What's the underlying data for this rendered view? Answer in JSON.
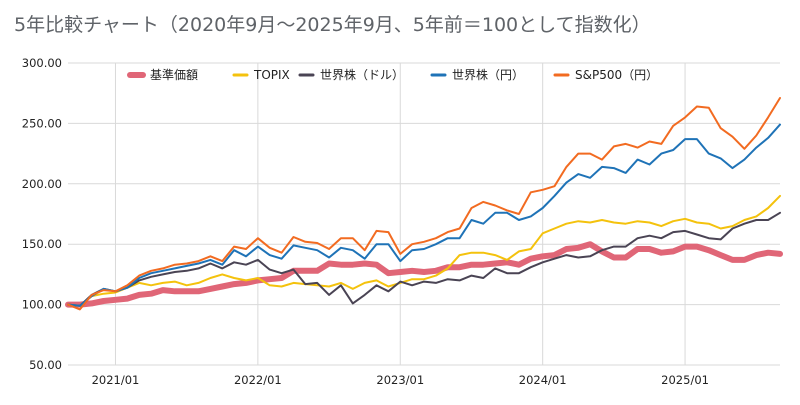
{
  "title": "5年比較チャート（2020年9月〜2025年9月、5年前＝100として指数化）",
  "chart_data": {
    "type": "line",
    "title": "5年比較チャート（2020年9月〜2025年9月、5年前＝100として指数化）",
    "xlabel": "",
    "ylabel": "",
    "ylim": [
      50,
      300
    ],
    "yticks": [
      "300.00",
      "250.00",
      "200.00",
      "150.00",
      "100.00",
      "50.00"
    ],
    "xticks": [
      {
        "label": "2021/01",
        "index": 4
      },
      {
        "label": "2022/01",
        "index": 16
      },
      {
        "label": "2023/01",
        "index": 28
      },
      {
        "label": "2024/01",
        "index": 40
      },
      {
        "label": "2025/01",
        "index": 52
      }
    ],
    "grid": true,
    "legend_position": "top",
    "x": [
      "2020/09",
      "2020/10",
      "2020/11",
      "2020/12",
      "2021/01",
      "2021/02",
      "2021/03",
      "2021/04",
      "2021/05",
      "2021/06",
      "2021/07",
      "2021/08",
      "2021/09",
      "2021/10",
      "2021/11",
      "2021/12",
      "2022/01",
      "2022/02",
      "2022/03",
      "2022/04",
      "2022/05",
      "2022/06",
      "2022/07",
      "2022/08",
      "2022/09",
      "2022/10",
      "2022/11",
      "2022/12",
      "2023/01",
      "2023/02",
      "2023/03",
      "2023/04",
      "2023/05",
      "2023/06",
      "2023/07",
      "2023/08",
      "2023/09",
      "2023/10",
      "2023/11",
      "2023/12",
      "2024/01",
      "2024/02",
      "2024/03",
      "2024/04",
      "2024/05",
      "2024/06",
      "2024/07",
      "2024/08",
      "2024/09",
      "2024/10",
      "2024/11",
      "2024/12",
      "2025/01",
      "2025/02",
      "2025/03",
      "2025/04",
      "2025/05",
      "2025/06",
      "2025/07",
      "2025/08",
      "2025/09"
    ],
    "series": [
      {
        "name": "基準価額",
        "color": "#e06677",
        "width": 6,
        "values": [
          100,
          100,
          101,
          103,
          104,
          105,
          108,
          109,
          112,
          111,
          111,
          111,
          113,
          115,
          117,
          118,
          120,
          121,
          122,
          128,
          128,
          128,
          134,
          133,
          133,
          134,
          133,
          126,
          127,
          128,
          127,
          128,
          131,
          131,
          133,
          133,
          134,
          135,
          133,
          138,
          140,
          141,
          146,
          147,
          150,
          144,
          139,
          139,
          146,
          146,
          143,
          144,
          148,
          148,
          145,
          141,
          137,
          137,
          141,
          143,
          142
        ]
      },
      {
        "name": "TOPIX",
        "color": "#f4c20d",
        "width": 2,
        "values": [
          100,
          99,
          107,
          109,
          110,
          114,
          118,
          116,
          118,
          119,
          116,
          118,
          122,
          125,
          122,
          120,
          122,
          116,
          115,
          118,
          117,
          116,
          115,
          118,
          113,
          118,
          120,
          115,
          118,
          121,
          121,
          124,
          130,
          141,
          143,
          143,
          141,
          137,
          144,
          146,
          159,
          163,
          167,
          169,
          168,
          170,
          168,
          167,
          169,
          168,
          165,
          169,
          171,
          168,
          167,
          163,
          165,
          170,
          173,
          180,
          190
        ]
      },
      {
        "name": "世界株（ドル）",
        "color": "#4a4454",
        "width": 2,
        "values": [
          100,
          99,
          108,
          113,
          111,
          114,
          120,
          123,
          125,
          127,
          128,
          130,
          134,
          130,
          135,
          133,
          137,
          129,
          126,
          129,
          117,
          118,
          108,
          116,
          101,
          108,
          116,
          111,
          119,
          116,
          119,
          118,
          121,
          120,
          124,
          122,
          130,
          126,
          126,
          131,
          135,
          138,
          141,
          139,
          140,
          145,
          148,
          148,
          155,
          157,
          155,
          160,
          161,
          158,
          155,
          154,
          163,
          167,
          170,
          170,
          176
        ]
      },
      {
        "name": "世界株（円）",
        "color": "#1f73b7",
        "width": 2,
        "values": [
          100,
          99,
          107,
          113,
          111,
          114,
          122,
          126,
          128,
          130,
          132,
          134,
          137,
          133,
          145,
          140,
          148,
          141,
          138,
          149,
          147,
          145,
          139,
          147,
          145,
          138,
          150,
          150,
          136,
          145,
          146,
          150,
          155,
          155,
          170,
          167,
          176,
          176,
          170,
          173,
          180,
          190,
          201,
          208,
          205,
          214,
          213,
          209,
          220,
          216,
          225,
          228,
          237,
          237,
          225,
          221,
          213,
          220,
          230,
          238,
          249
        ]
      },
      {
        "name": "S&P500（円）",
        "color": "#f26b21",
        "width": 2,
        "values": [
          100,
          96,
          108,
          112,
          111,
          116,
          124,
          128,
          130,
          133,
          134,
          136,
          140,
          136,
          148,
          146,
          155,
          147,
          143,
          156,
          152,
          151,
          146,
          155,
          155,
          145,
          161,
          160,
          142,
          150,
          152,
          155,
          160,
          163,
          180,
          185,
          182,
          178,
          175,
          193,
          195,
          198,
          214,
          225,
          225,
          220,
          231,
          233,
          230,
          235,
          233,
          248,
          255,
          264,
          263,
          246,
          239,
          229,
          240,
          255,
          271
        ]
      }
    ]
  }
}
